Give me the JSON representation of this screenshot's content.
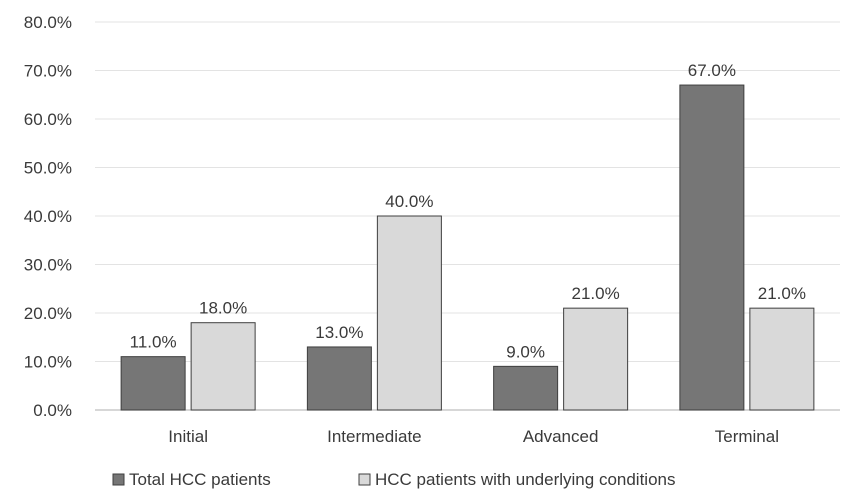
{
  "chart_data": {
    "type": "bar",
    "categories": [
      "Initial",
      "Intermediate",
      "Advanced",
      "Terminal"
    ],
    "series": [
      {
        "name": "Total HCC patients",
        "values": [
          11.0,
          13.0,
          9.0,
          67.0
        ],
        "color": "#767676",
        "labels": [
          "11.0%",
          "13.0%",
          "9.0%",
          "67.0%"
        ]
      },
      {
        "name": "HCC patients with underlying conditions",
        "values": [
          18.0,
          40.0,
          21.0,
          21.0
        ],
        "color": "#d9d9d9",
        "labels": [
          "18.0%",
          "40.0%",
          "21.0%",
          "21.0%"
        ]
      }
    ],
    "ylim": [
      0,
      80
    ],
    "yticks": [
      0,
      10,
      20,
      30,
      40,
      50,
      60,
      70,
      80
    ],
    "ytick_labels": [
      "0.0%",
      "10.0%",
      "20.0%",
      "30.0%",
      "40.0%",
      "50.0%",
      "60.0%",
      "70.0%",
      "80.0%"
    ],
    "grid": true,
    "legend_position": "bottom",
    "title": "",
    "xlabel": "",
    "ylabel": ""
  }
}
